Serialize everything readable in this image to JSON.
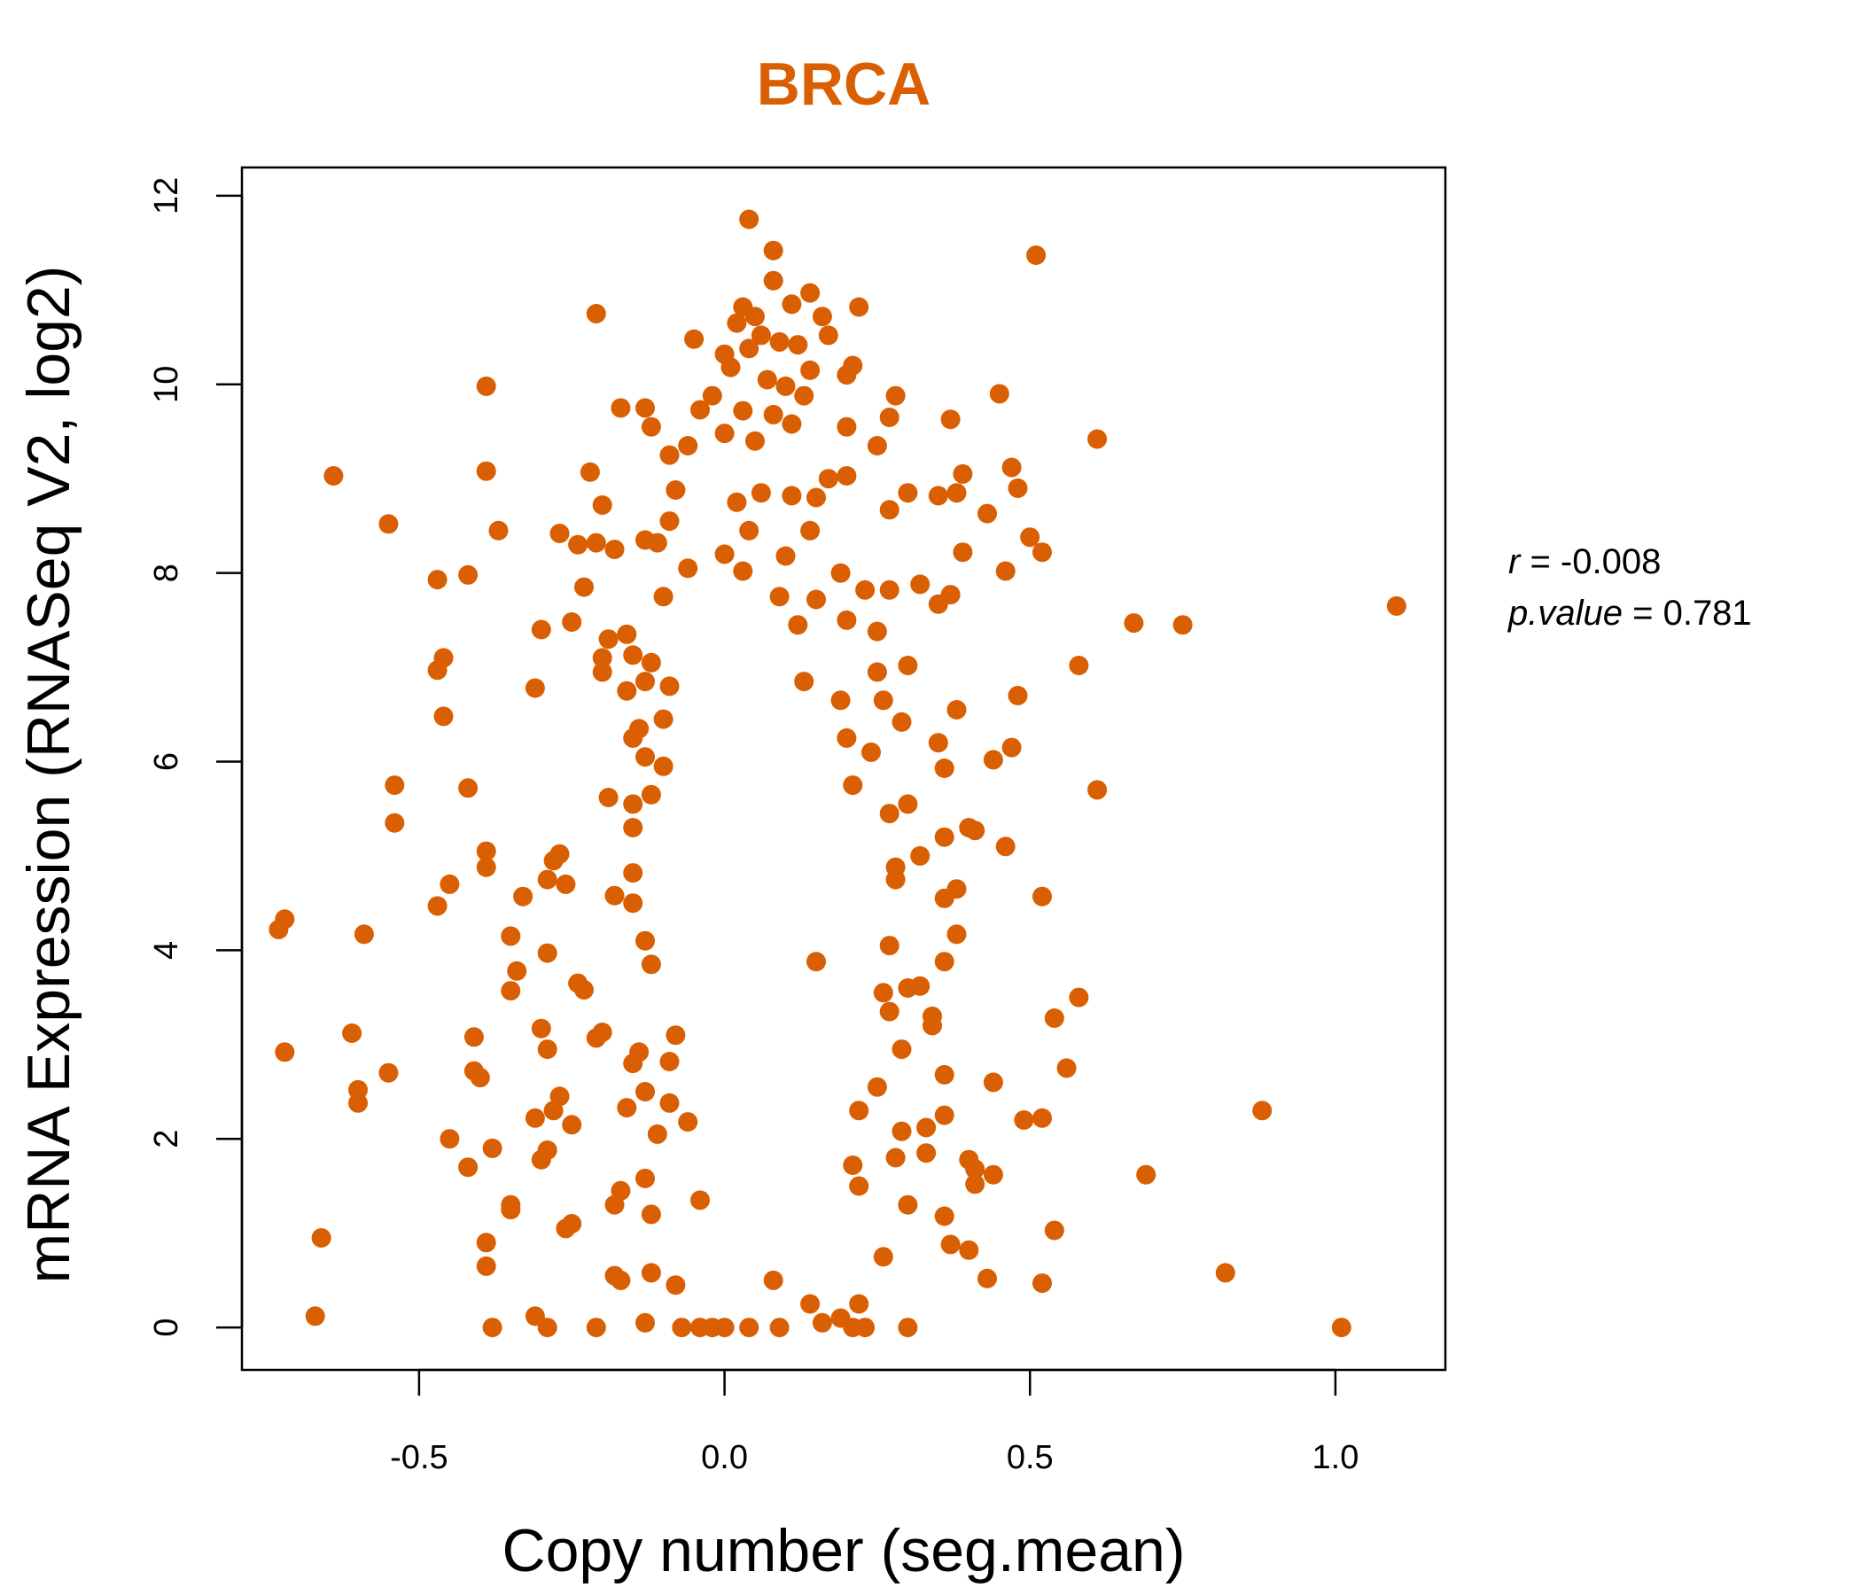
{
  "chart_data": {
    "type": "scatter",
    "title": "BRCA",
    "xlabel": "Copy number (seg.mean)",
    "ylabel": "mRNA Expression (RNASeq V2, log2)",
    "xlim": [
      -0.79,
      1.18
    ],
    "ylim": [
      -0.45,
      12.3
    ],
    "x_ticks": [
      -0.5,
      0.0,
      0.5,
      1.0
    ],
    "x_tick_labels": [
      "-0.5",
      "0.0",
      "0.5",
      "1.0"
    ],
    "y_ticks": [
      0,
      2,
      4,
      6,
      8,
      10,
      12
    ],
    "y_tick_labels": [
      "0",
      "2",
      "4",
      "6",
      "8",
      "10",
      "12"
    ],
    "grid": false,
    "point_color": "#D95F02",
    "annotation": {
      "r_label": "r",
      "r_value": "-0.008",
      "p_label": "p.value",
      "p_value": "0.781"
    },
    "points": [
      [
        0.04,
        11.75
      ],
      [
        0.51,
        11.37
      ],
      [
        0.08,
        11.42
      ],
      [
        0.08,
        11.1
      ],
      [
        -0.21,
        10.75
      ],
      [
        0.03,
        10.82
      ],
      [
        0.05,
        10.72
      ],
      [
        0.11,
        10.85
      ],
      [
        0.14,
        10.97
      ],
      [
        0.22,
        10.82
      ],
      [
        -0.05,
        10.48
      ],
      [
        0.02,
        10.65
      ],
      [
        0.06,
        10.52
      ],
      [
        0.16,
        10.72
      ],
      [
        0.17,
        10.52
      ],
      [
        0.09,
        10.45
      ],
      [
        0.12,
        10.42
      ],
      [
        0.0,
        10.32
      ],
      [
        0.04,
        10.38
      ],
      [
        0.21,
        10.2
      ],
      [
        0.2,
        10.1
      ],
      [
        0.14,
        10.15
      ],
      [
        -0.39,
        9.98
      ],
      [
        0.1,
        9.98
      ],
      [
        0.01,
        10.18
      ],
      [
        0.07,
        10.05
      ],
      [
        0.13,
        9.88
      ],
      [
        0.28,
        9.88
      ],
      [
        0.45,
        9.9
      ],
      [
        -0.02,
        9.88
      ],
      [
        -0.04,
        9.73
      ],
      [
        -0.17,
        9.75
      ],
      [
        -0.12,
        9.55
      ],
      [
        -0.13,
        9.75
      ],
      [
        0.03,
        9.72
      ],
      [
        0.08,
        9.68
      ],
      [
        0.11,
        9.58
      ],
      [
        0.2,
        9.55
      ],
      [
        0.27,
        9.65
      ],
      [
        0.37,
        9.63
      ],
      [
        0.61,
        9.42
      ],
      [
        -0.09,
        9.25
      ],
      [
        -0.06,
        9.35
      ],
      [
        0.0,
        9.48
      ],
      [
        0.05,
        9.4
      ],
      [
        0.25,
        9.35
      ],
      [
        0.47,
        9.12
      ],
      [
        -0.64,
        9.03
      ],
      [
        -0.39,
        9.08
      ],
      [
        -0.22,
        9.07
      ],
      [
        0.39,
        9.05
      ],
      [
        0.17,
        9.0
      ],
      [
        0.2,
        9.03
      ],
      [
        0.48,
        8.9
      ],
      [
        0.3,
        8.85
      ],
      [
        0.35,
        8.82
      ],
      [
        0.38,
        8.85
      ],
      [
        -0.2,
        8.72
      ],
      [
        -0.08,
        8.88
      ],
      [
        0.02,
        8.75
      ],
      [
        0.06,
        8.85
      ],
      [
        0.11,
        8.82
      ],
      [
        0.15,
        8.8
      ],
      [
        0.27,
        8.67
      ],
      [
        0.43,
        8.63
      ],
      [
        -0.55,
        8.52
      ],
      [
        -0.37,
        8.45
      ],
      [
        -0.13,
        8.35
      ],
      [
        -0.09,
        8.55
      ],
      [
        0.04,
        8.45
      ],
      [
        0.14,
        8.45
      ],
      [
        0.5,
        8.38
      ],
      [
        -0.27,
        8.42
      ],
      [
        -0.24,
        8.3
      ],
      [
        -0.21,
        8.32
      ],
      [
        -0.18,
        8.25
      ],
      [
        -0.11,
        8.32
      ],
      [
        0.52,
        8.22
      ],
      [
        0.39,
        8.22
      ],
      [
        0.0,
        8.2
      ],
      [
        0.1,
        8.18
      ],
      [
        0.19,
        8.0
      ],
      [
        -0.42,
        7.98
      ],
      [
        -0.47,
        7.93
      ],
      [
        -0.06,
        8.05
      ],
      [
        0.03,
        8.02
      ],
      [
        0.46,
        8.02
      ],
      [
        -0.23,
        7.85
      ],
      [
        0.32,
        7.88
      ],
      [
        0.37,
        7.77
      ],
      [
        -0.1,
        7.75
      ],
      [
        0.09,
        7.75
      ],
      [
        0.15,
        7.72
      ],
      [
        0.23,
        7.82
      ],
      [
        0.27,
        7.82
      ],
      [
        0.35,
        7.67
      ],
      [
        1.1,
        7.65
      ],
      [
        0.67,
        7.47
      ],
      [
        0.75,
        7.45
      ],
      [
        -0.3,
        7.4
      ],
      [
        -0.25,
        7.48
      ],
      [
        -0.16,
        7.35
      ],
      [
        -0.19,
        7.3
      ],
      [
        0.12,
        7.45
      ],
      [
        0.2,
        7.5
      ],
      [
        0.25,
        7.38
      ],
      [
        -0.2,
        7.1
      ],
      [
        -0.15,
        7.13
      ],
      [
        -0.12,
        7.05
      ],
      [
        -0.46,
        7.1
      ],
      [
        -0.47,
        6.97
      ],
      [
        0.3,
        7.02
      ],
      [
        0.58,
        7.02
      ],
      [
        -0.2,
        6.95
      ],
      [
        -0.13,
        6.85
      ],
      [
        -0.09,
        6.8
      ],
      [
        0.13,
        6.85
      ],
      [
        0.25,
        6.95
      ],
      [
        -0.31,
        6.78
      ],
      [
        -0.16,
        6.75
      ],
      [
        0.48,
        6.7
      ],
      [
        0.19,
        6.65
      ],
      [
        0.26,
        6.65
      ],
      [
        -0.46,
        6.48
      ],
      [
        0.38,
        6.55
      ],
      [
        -0.1,
        6.45
      ],
      [
        0.29,
        6.42
      ],
      [
        -0.14,
        6.35
      ],
      [
        -0.15,
        6.25
      ],
      [
        0.2,
        6.25
      ],
      [
        0.35,
        6.2
      ],
      [
        0.47,
        6.15
      ],
      [
        -0.13,
        6.05
      ],
      [
        -0.1,
        5.95
      ],
      [
        0.44,
        6.02
      ],
      [
        0.24,
        6.1
      ],
      [
        0.36,
        5.93
      ],
      [
        -0.54,
        5.75
      ],
      [
        -0.42,
        5.72
      ],
      [
        0.21,
        5.75
      ],
      [
        0.61,
        5.7
      ],
      [
        -0.19,
        5.62
      ],
      [
        -0.15,
        5.55
      ],
      [
        -0.12,
        5.65
      ],
      [
        0.3,
        5.55
      ],
      [
        -0.54,
        5.35
      ],
      [
        -0.15,
        5.3
      ],
      [
        0.27,
        5.45
      ],
      [
        0.41,
        5.27
      ],
      [
        0.4,
        5.3
      ],
      [
        0.36,
        5.2
      ],
      [
        0.46,
        5.1
      ],
      [
        -0.39,
        5.05
      ],
      [
        -0.39,
        4.88
      ],
      [
        -0.27,
        5.02
      ],
      [
        -0.28,
        4.95
      ],
      [
        -0.15,
        4.82
      ],
      [
        0.32,
        5.0
      ],
      [
        0.28,
        4.88
      ],
      [
        -0.45,
        4.7
      ],
      [
        -0.26,
        4.7
      ],
      [
        -0.29,
        4.75
      ],
      [
        0.28,
        4.75
      ],
      [
        0.38,
        4.65
      ],
      [
        -0.47,
        4.47
      ],
      [
        -0.33,
        4.57
      ],
      [
        -0.18,
        4.58
      ],
      [
        -0.15,
        4.5
      ],
      [
        0.36,
        4.55
      ],
      [
        0.52,
        4.57
      ],
      [
        -0.72,
        4.33
      ],
      [
        -0.73,
        4.22
      ],
      [
        -0.59,
        4.17
      ],
      [
        -0.35,
        4.15
      ],
      [
        -0.13,
        4.1
      ],
      [
        0.27,
        4.05
      ],
      [
        0.38,
        4.17
      ],
      [
        -0.29,
        3.97
      ],
      [
        -0.12,
        3.85
      ],
      [
        0.15,
        3.88
      ],
      [
        0.36,
        3.88
      ],
      [
        -0.34,
        3.78
      ],
      [
        -0.24,
        3.65
      ],
      [
        -0.23,
        3.58
      ],
      [
        -0.35,
        3.57
      ],
      [
        0.58,
        3.5
      ],
      [
        0.3,
        3.6
      ],
      [
        0.26,
        3.55
      ],
      [
        0.32,
        3.62
      ],
      [
        0.27,
        3.35
      ],
      [
        0.34,
        3.3
      ],
      [
        0.54,
        3.28
      ],
      [
        -0.3,
        3.17
      ],
      [
        -0.2,
        3.13
      ],
      [
        -0.21,
        3.07
      ],
      [
        -0.08,
        3.1
      ],
      [
        -0.61,
        3.12
      ],
      [
        -0.41,
        3.08
      ],
      [
        0.34,
        3.2
      ],
      [
        -0.29,
        2.95
      ],
      [
        -0.14,
        2.92
      ],
      [
        -0.72,
        2.92
      ],
      [
        0.29,
        2.95
      ],
      [
        -0.15,
        2.8
      ],
      [
        -0.09,
        2.82
      ],
      [
        -0.55,
        2.7
      ],
      [
        -0.41,
        2.72
      ],
      [
        -0.4,
        2.65
      ],
      [
        0.36,
        2.68
      ],
      [
        0.56,
        2.75
      ],
      [
        -0.6,
        2.52
      ],
      [
        -0.6,
        2.38
      ],
      [
        -0.27,
        2.45
      ],
      [
        -0.13,
        2.5
      ],
      [
        0.25,
        2.55
      ],
      [
        0.44,
        2.6
      ],
      [
        -0.09,
        2.38
      ],
      [
        -0.16,
        2.33
      ],
      [
        -0.28,
        2.3
      ],
      [
        -0.31,
        2.22
      ],
      [
        0.22,
        2.3
      ],
      [
        0.36,
        2.25
      ],
      [
        0.52,
        2.22
      ],
      [
        0.49,
        2.2
      ],
      [
        0.88,
        2.3
      ],
      [
        -0.25,
        2.15
      ],
      [
        -0.06,
        2.18
      ],
      [
        -0.45,
        2.0
      ],
      [
        -0.11,
        2.05
      ],
      [
        0.29,
        2.08
      ],
      [
        0.33,
        2.12
      ],
      [
        -0.38,
        1.9
      ],
      [
        -0.29,
        1.88
      ],
      [
        0.33,
        1.85
      ],
      [
        -0.3,
        1.78
      ],
      [
        0.28,
        1.8
      ],
      [
        0.4,
        1.78
      ],
      [
        -0.42,
        1.7
      ],
      [
        0.21,
        1.72
      ],
      [
        0.41,
        1.68
      ],
      [
        0.44,
        1.62
      ],
      [
        0.69,
        1.62
      ],
      [
        -0.13,
        1.58
      ],
      [
        -0.17,
        1.45
      ],
      [
        0.22,
        1.5
      ],
      [
        0.41,
        1.52
      ],
      [
        -0.35,
        1.3
      ],
      [
        -0.35,
        1.25
      ],
      [
        -0.18,
        1.3
      ],
      [
        -0.04,
        1.35
      ],
      [
        0.3,
        1.3
      ],
      [
        -0.12,
        1.2
      ],
      [
        0.36,
        1.18
      ],
      [
        -0.25,
        1.1
      ],
      [
        -0.26,
        1.05
      ],
      [
        0.54,
        1.03
      ],
      [
        -0.66,
        0.95
      ],
      [
        -0.39,
        0.9
      ],
      [
        0.37,
        0.88
      ],
      [
        0.4,
        0.82
      ],
      [
        0.26,
        0.75
      ],
      [
        -0.39,
        0.65
      ],
      [
        -0.18,
        0.55
      ],
      [
        -0.17,
        0.5
      ],
      [
        -0.12,
        0.58
      ],
      [
        0.82,
        0.58
      ],
      [
        0.43,
        0.52
      ],
      [
        0.52,
        0.47
      ],
      [
        -0.08,
        0.45
      ],
      [
        0.08,
        0.5
      ],
      [
        0.14,
        0.25
      ],
      [
        0.22,
        0.25
      ],
      [
        -0.67,
        0.12
      ],
      [
        -0.31,
        0.12
      ],
      [
        0.19,
        0.1
      ],
      [
        -0.38,
        0.0
      ],
      [
        -0.29,
        0.0
      ],
      [
        -0.21,
        0.0
      ],
      [
        -0.13,
        0.05
      ],
      [
        -0.07,
        0.0
      ],
      [
        -0.04,
        0.0
      ],
      [
        -0.02,
        0.0
      ],
      [
        0.0,
        0.0
      ],
      [
        0.04,
        0.0
      ],
      [
        0.09,
        0.0
      ],
      [
        0.16,
        0.05
      ],
      [
        0.21,
        0.0
      ],
      [
        0.3,
        0.0
      ],
      [
        1.01,
        0.0
      ],
      [
        0.23,
        0.0
      ]
    ]
  }
}
